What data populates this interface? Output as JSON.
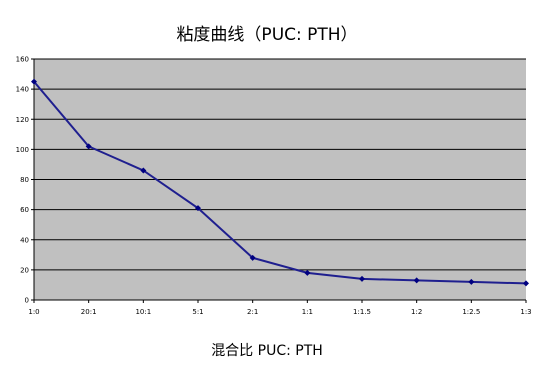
{
  "chart_data": {
    "type": "line",
    "title": "粘度曲线（PUC: PTH）",
    "xlabel": "混合比 PUC: PTH",
    "ylabel": "",
    "categories": [
      "1:0",
      "20:1",
      "10:1",
      "5:1",
      "2:1",
      "1:1",
      "1:1.5",
      "1:2",
      "1:2.5",
      "1:3"
    ],
    "series": [
      {
        "values": [
          145,
          102,
          86,
          61,
          28,
          18,
          14,
          13,
          12,
          11
        ]
      }
    ],
    "ylim": [
      0,
      160
    ],
    "yticks": [
      0,
      20,
      40,
      60,
      80,
      100,
      120,
      140,
      160
    ],
    "grid": true,
    "legend": "none",
    "colors": {
      "plot_background": "#c0c0c0",
      "gridline": "#000000",
      "series_line": "#1f1f8f",
      "marker": "#000080"
    }
  }
}
